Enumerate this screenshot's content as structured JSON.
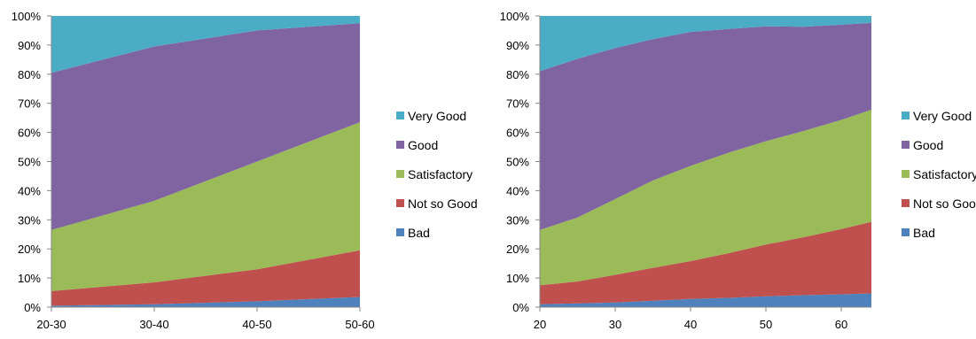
{
  "colors": {
    "Very Good": "#4bacc6",
    "Good": "#8064a2",
    "Satisfactory": "#9bbb59",
    "Not so Good": "#c0504d",
    "Bad": "#4f81bd"
  },
  "chart_data": [
    {
      "type": "area",
      "stacked": "percent",
      "x": [
        "20-30",
        "30-40",
        "40-50",
        "50-60"
      ],
      "ylim": [
        0,
        100
      ],
      "yticks": [
        "0%",
        "10%",
        "20%",
        "30%",
        "40%",
        "50%",
        "60%",
        "70%",
        "80%",
        "90%",
        "100%"
      ],
      "grid": false,
      "legend_position": "right",
      "series": [
        {
          "name": "Bad",
          "values": [
            0.5,
            1,
            2,
            3.5
          ]
        },
        {
          "name": "Not so Good",
          "values": [
            5,
            7.5,
            11,
            16
          ]
        },
        {
          "name": "Satisfactory",
          "values": [
            21,
            28,
            37,
            44
          ]
        },
        {
          "name": "Good",
          "values": [
            54,
            53,
            45,
            34
          ]
        },
        {
          "name": "Very Good",
          "values": [
            19.5,
            10.5,
            5,
            2.5
          ]
        }
      ],
      "legend": [
        "Very Good",
        "Good",
        "Satisfactory",
        "Not so Good",
        "Bad"
      ]
    },
    {
      "type": "area",
      "stacked": "percent",
      "x": [
        20,
        25,
        30,
        35,
        40,
        45,
        50,
        55,
        60,
        64
      ],
      "xticks": [
        "20",
        "30",
        "40",
        "50",
        "60"
      ],
      "xlim": [
        20,
        64
      ],
      "ylim": [
        0,
        100
      ],
      "yticks": [
        "0%",
        "10%",
        "20%",
        "30%",
        "40%",
        "50%",
        "60%",
        "70%",
        "80%",
        "90%",
        "100%"
      ],
      "grid": false,
      "legend_position": "right",
      "series": [
        {
          "name": "Bad",
          "values": [
            1,
            1.3,
            1.6,
            2.2,
            2.8,
            3.2,
            3.7,
            4.1,
            4.4,
            4.7
          ]
        },
        {
          "name": "Not so Good",
          "values": [
            6.5,
            7.5,
            9.5,
            11.3,
            13,
            15.3,
            17.8,
            19.9,
            22.4,
            24.6
          ]
        },
        {
          "name": "Satisfactory",
          "values": [
            19,
            22,
            26,
            30,
            32.7,
            34.5,
            35.5,
            36.5,
            37.5,
            38.5
          ]
        },
        {
          "name": "Good",
          "values": [
            54.5,
            54.5,
            51.9,
            48.5,
            46,
            42.5,
            39.4,
            35.8,
            32.7,
            29.8
          ]
        },
        {
          "name": "Very Good",
          "values": [
            19,
            14.7,
            11,
            8,
            5.5,
            4.5,
            3.6,
            3.7,
            3,
            2.4
          ]
        }
      ],
      "legend": [
        "Very Good",
        "Good",
        "Satisfactory",
        "Not so Good",
        "Bad"
      ]
    }
  ]
}
